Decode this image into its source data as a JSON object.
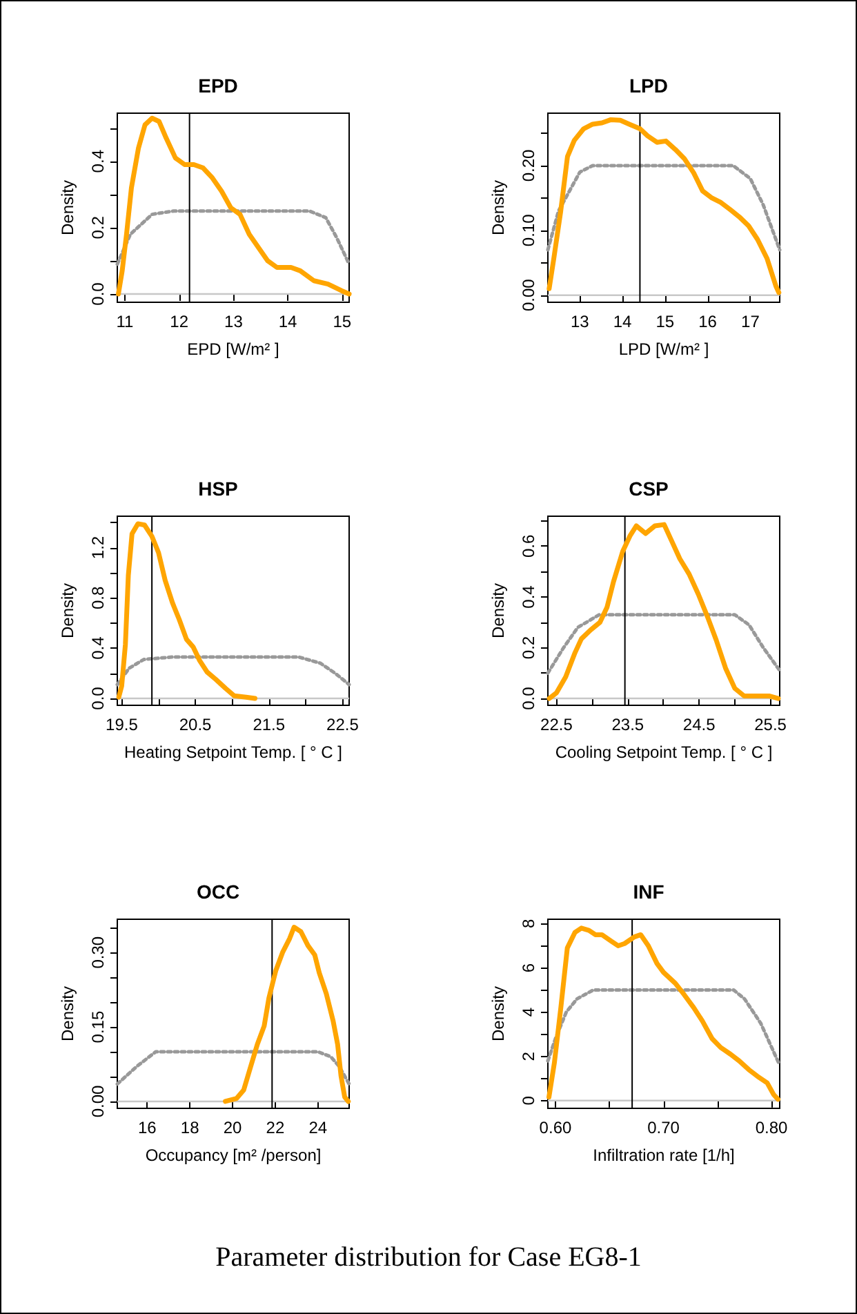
{
  "chart_data": [
    {
      "type": "line",
      "title": "EPD",
      "xlabel": "EPD [W/m² ]",
      "ylabel": "Density",
      "xlim": [
        10.86,
        15.13
      ],
      "ylim": [
        -0.025,
        0.545
      ],
      "xticks": [
        11,
        12,
        13,
        14,
        15
      ],
      "yticks": [
        {
          "value": 0,
          "label": "0.0"
        },
        {
          "value": 0.1,
          "label": null
        },
        0.2,
        {
          "value": 0.3,
          "label": null
        },
        0.4,
        {
          "value": 0.5,
          "label": null
        }
      ],
      "grid": false,
      "marker": "none",
      "series": [
        {
          "color": "#ffa500",
          "line_style": "solid",
          "x": [
            10.88,
            10.95,
            11.03,
            11.12,
            11.25,
            11.37,
            11.5,
            11.63,
            11.76,
            11.93,
            12.1,
            12.27,
            12.44,
            12.61,
            12.78,
            12.95,
            13.12,
            13.29,
            13.46,
            13.63,
            13.8,
            14.06,
            14.23,
            14.48,
            14.74,
            14.99,
            15.13
          ],
          "values": [
            0,
            0.07,
            0.18,
            0.32,
            0.44,
            0.51,
            0.53,
            0.52,
            0.47,
            0.41,
            0.39,
            0.39,
            0.38,
            0.35,
            0.31,
            0.26,
            0.24,
            0.18,
            0.14,
            0.1,
            0.08,
            0.08,
            0.07,
            0.04,
            0.03,
            0.01,
            0
          ]
        },
        {
          "color": "#999999",
          "line_style": "dotted",
          "x": [
            10.86,
            11.1,
            11.5,
            11.9,
            14.4,
            14.7,
            14.9,
            15.13
          ],
          "values": [
            0.09,
            0.18,
            0.24,
            0.25,
            0.25,
            0.23,
            0.17,
            0.09
          ]
        }
      ],
      "ref_lines": [
        {
          "axis": "x",
          "value": 12.19,
          "color": "#000000"
        },
        {
          "axis": "y",
          "value": 0,
          "color": "#c8c8c8"
        }
      ]
    },
    {
      "type": "line",
      "title": "LPD",
      "xlabel": "LPD [W/m² ]",
      "ylabel": "Density",
      "xlim": [
        12.25,
        17.69
      ],
      "ylim": [
        -0.011,
        0.281
      ],
      "xticks": [
        13,
        14,
        15,
        16,
        17
      ],
      "yticks": [
        {
          "value": 0,
          "label": "0.00"
        },
        {
          "value": 0.05,
          "label": null
        },
        {
          "value": 0.1,
          "label": "0.10"
        },
        {
          "value": 0.15,
          "label": null
        },
        {
          "value": 0.2,
          "label": "0.20"
        },
        {
          "value": 0.25,
          "label": null
        }
      ],
      "grid": false,
      "marker": "none",
      "series": [
        {
          "color": "#ffa500",
          "line_style": "solid",
          "x": [
            12.28,
            12.39,
            12.55,
            12.71,
            12.87,
            13.09,
            13.3,
            13.52,
            13.73,
            13.95,
            14.16,
            14.41,
            14.59,
            14.81,
            15.02,
            15.24,
            15.45,
            15.67,
            15.88,
            16.1,
            16.31,
            16.53,
            16.74,
            16.96,
            17.17,
            17.39,
            17.6,
            17.67
          ],
          "values": [
            0.01,
            0.057,
            0.129,
            0.214,
            0.239,
            0.257,
            0.264,
            0.266,
            0.271,
            0.27,
            0.264,
            0.257,
            0.246,
            0.236,
            0.238,
            0.225,
            0.211,
            0.189,
            0.161,
            0.15,
            0.143,
            0.132,
            0.121,
            0.107,
            0.086,
            0.057,
            0.014,
            0.004
          ]
        },
        {
          "color": "#999999",
          "line_style": "dotted",
          "x": [
            12.25,
            12.5,
            13,
            13.3,
            16.6,
            17,
            17.3,
            17.69
          ],
          "values": [
            0.07,
            0.13,
            0.19,
            0.2,
            0.2,
            0.18,
            0.14,
            0.07
          ]
        }
      ],
      "ref_lines": [
        {
          "axis": "x",
          "value": 14.41,
          "color": "#000000"
        },
        {
          "axis": "y",
          "value": 0,
          "color": "#c8c8c8"
        }
      ]
    },
    {
      "type": "line",
      "title": "HSP",
      "xlabel": "Heating Setpoint Temp. [ ° C ]",
      "ylabel": "Density",
      "xlim": [
        19.44,
        22.59
      ],
      "ylim": [
        -0.055,
        1.45
      ],
      "xticks": [
        19.5,
        {
          "value": 20,
          "label": null
        },
        20.5,
        {
          "value": 21,
          "label": null
        },
        21.5,
        {
          "value": 22,
          "label": null
        },
        22.5
      ],
      "yticks": [
        {
          "value": 0,
          "label": "0.0"
        },
        {
          "value": 0.2,
          "label": null
        },
        0.4,
        {
          "value": 0.6,
          "label": null
        },
        0.8,
        {
          "value": 1,
          "label": null
        },
        1.2,
        {
          "value": 1.4,
          "label": null
        }
      ],
      "grid": false,
      "marker": "none",
      "series": [
        {
          "color": "#ffa500",
          "line_style": "solid",
          "x": [
            19.46,
            19.5,
            19.55,
            19.59,
            19.64,
            19.72,
            19.81,
            19.91,
            20,
            20.09,
            20.19,
            20.28,
            20.38,
            20.47,
            20.56,
            20.66,
            20.78,
            20.91,
            21.03,
            21.19,
            21.31
          ],
          "values": [
            0.01,
            0.1,
            0.43,
            0.98,
            1.31,
            1.39,
            1.38,
            1.29,
            1.16,
            0.94,
            0.76,
            0.63,
            0.47,
            0.41,
            0.3,
            0.21,
            0.15,
            0.08,
            0.02,
            0.01,
            0
          ]
        },
        {
          "color": "#999999",
          "line_style": "dotted",
          "x": [
            19.44,
            19.6,
            19.8,
            20.2,
            21.9,
            22.2,
            22.4,
            22.59
          ],
          "values": [
            0.11,
            0.24,
            0.31,
            0.33,
            0.33,
            0.28,
            0.2,
            0.11
          ]
        }
      ],
      "ref_lines": [
        {
          "axis": "x",
          "value": 19.91,
          "color": "#000000"
        },
        {
          "axis": "y",
          "value": 0,
          "color": "#c8c8c8"
        }
      ]
    },
    {
      "type": "line",
      "title": "CSP",
      "xlabel": "Cooling Setpoint Temp. [ ° C ]",
      "ylabel": "Density",
      "xlim": [
        22.38,
        25.63
      ],
      "ylim": [
        -0.027,
        0.718
      ],
      "xticks": [
        22.5,
        {
          "value": 23,
          "label": null
        },
        23.5,
        {
          "value": 24,
          "label": null
        },
        24.5,
        {
          "value": 25,
          "label": null
        },
        25.5
      ],
      "yticks": [
        {
          "value": 0,
          "label": "0.0"
        },
        {
          "value": 0.1,
          "label": null
        },
        0.2,
        {
          "value": 0.3,
          "label": null
        },
        0.4,
        {
          "value": 0.5,
          "label": null
        },
        0.6,
        {
          "value": 0.7,
          "label": null
        }
      ],
      "grid": false,
      "marker": "none",
      "series": [
        {
          "color": "#ffa500",
          "line_style": "solid",
          "x": [
            22.4,
            22.5,
            22.63,
            22.76,
            22.85,
            22.98,
            23.11,
            23.21,
            23.3,
            23.43,
            23.53,
            23.62,
            23.75,
            23.88,
            24.01,
            24.1,
            24.23,
            24.36,
            24.49,
            24.62,
            24.74,
            24.87,
            25,
            25.13,
            25.32,
            25.48,
            25.61
          ],
          "values": [
            0,
            0.022,
            0.085,
            0.18,
            0.235,
            0.27,
            0.3,
            0.36,
            0.46,
            0.58,
            0.64,
            0.68,
            0.65,
            0.68,
            0.685,
            0.63,
            0.55,
            0.49,
            0.41,
            0.32,
            0.23,
            0.12,
            0.04,
            0.01,
            0.01,
            0.01,
            0
          ]
        },
        {
          "color": "#999999",
          "line_style": "dotted",
          "x": [
            22.38,
            22.6,
            22.8,
            23.1,
            25,
            25.2,
            25.4,
            25.63
          ],
          "values": [
            0.1,
            0.2,
            0.28,
            0.33,
            0.33,
            0.29,
            0.2,
            0.11
          ]
        }
      ],
      "ref_lines": [
        {
          "axis": "x",
          "value": 23.46,
          "color": "#000000"
        },
        {
          "axis": "y",
          "value": 0,
          "color": "#c8c8c8"
        }
      ]
    },
    {
      "type": "line",
      "title": "OCC",
      "xlabel": "Occupancy [m² /person]",
      "ylabel": "Density",
      "xlim": [
        14.6,
        25.46
      ],
      "ylim": [
        -0.014,
        0.367
      ],
      "xticks": [
        16,
        18,
        20,
        22,
        24
      ],
      "yticks": [
        {
          "value": 0,
          "label": "0.00"
        },
        {
          "value": 0.05,
          "label": null
        },
        {
          "value": 0.1,
          "label": null
        },
        0.15,
        {
          "value": 0.2,
          "label": null
        },
        {
          "value": 0.25,
          "label": null
        },
        {
          "value": 0.3,
          "label": "0.30"
        },
        {
          "value": 0.35,
          "label": null
        }
      ],
      "grid": false,
      "marker": "none",
      "series": [
        {
          "color": "#ffa500",
          "line_style": "solid",
          "x": [
            19.66,
            20.19,
            20.52,
            20.84,
            21.16,
            21.48,
            21.7,
            22.02,
            22.34,
            22.67,
            22.88,
            23.2,
            23.53,
            23.85,
            24.06,
            24.39,
            24.71,
            24.92,
            25.08,
            25.25,
            25.42
          ],
          "values": [
            0,
            0.006,
            0.023,
            0.069,
            0.115,
            0.152,
            0.208,
            0.263,
            0.3,
            0.328,
            0.351,
            0.342,
            0.314,
            0.295,
            0.259,
            0.217,
            0.162,
            0.115,
            0.051,
            0.009,
            0
          ]
        },
        {
          "color": "#999999",
          "line_style": "dotted",
          "x": [
            14.6,
            15.5,
            16.4,
            17,
            24,
            24.6,
            25,
            25.46
          ],
          "values": [
            0.035,
            0.07,
            0.1,
            0.1,
            0.1,
            0.09,
            0.07,
            0.035
          ]
        }
      ],
      "ref_lines": [
        {
          "axis": "x",
          "value": 21.85,
          "color": "#000000"
        },
        {
          "axis": "y",
          "value": 0,
          "color": "#c8c8c8"
        }
      ]
    },
    {
      "type": "line",
      "title": "INF",
      "xlabel": "Infiltration rate [1/h]",
      "ylabel": "Density",
      "xlim": [
        0.593,
        0.8076
      ],
      "ylim": [
        -0.35,
        8.2
      ],
      "xticks": [
        {
          "value": 0.6,
          "label": "0.60"
        },
        {
          "value": 0.65,
          "label": null
        },
        {
          "value": 0.7,
          "label": "0.70"
        },
        {
          "value": 0.75,
          "label": null
        },
        {
          "value": 0.8,
          "label": "0.80"
        }
      ],
      "yticks": [
        0,
        {
          "value": 1,
          "label": null
        },
        2,
        {
          "value": 3,
          "label": null
        },
        4,
        {
          "value": 5,
          "label": null
        },
        6,
        {
          "value": 7,
          "label": null
        },
        8
      ],
      "grid": false,
      "marker": "none",
      "series": [
        {
          "color": "#ffa500",
          "line_style": "solid",
          "x": [
            0.594,
            0.599,
            0.605,
            0.611,
            0.618,
            0.624,
            0.631,
            0.637,
            0.643,
            0.652,
            0.658,
            0.664,
            0.673,
            0.679,
            0.686,
            0.694,
            0.7,
            0.711,
            0.719,
            0.728,
            0.736,
            0.745,
            0.753,
            0.762,
            0.77,
            0.779,
            0.787,
            0.796,
            0.802,
            0.806
          ],
          "values": [
            0.16,
            1.7,
            4.2,
            6.9,
            7.6,
            7.8,
            7.7,
            7.5,
            7.5,
            7.2,
            7,
            7.1,
            7.4,
            7.5,
            7,
            6.2,
            5.8,
            5.3,
            4.8,
            4.2,
            3.6,
            2.8,
            2.4,
            2.1,
            1.8,
            1.4,
            1.1,
            0.8,
            0.27,
            0.06
          ]
        },
        {
          "color": "#999999",
          "line_style": "dotted",
          "x": [
            0.593,
            0.6,
            0.61,
            0.62,
            0.635,
            0.765,
            0.775,
            0.79,
            0.8076
          ],
          "values": [
            1.8,
            2.8,
            4,
            4.6,
            5,
            5,
            4.6,
            3.5,
            1.6
          ]
        }
      ],
      "ref_lines": [
        {
          "axis": "x",
          "value": 0.671,
          "color": "#000000"
        },
        {
          "axis": "y",
          "value": 0,
          "color": "#c8c8c8"
        }
      ]
    },
    {
      "type": "other",
      "title": "Parameter distribution for Case EG8-1"
    }
  ]
}
